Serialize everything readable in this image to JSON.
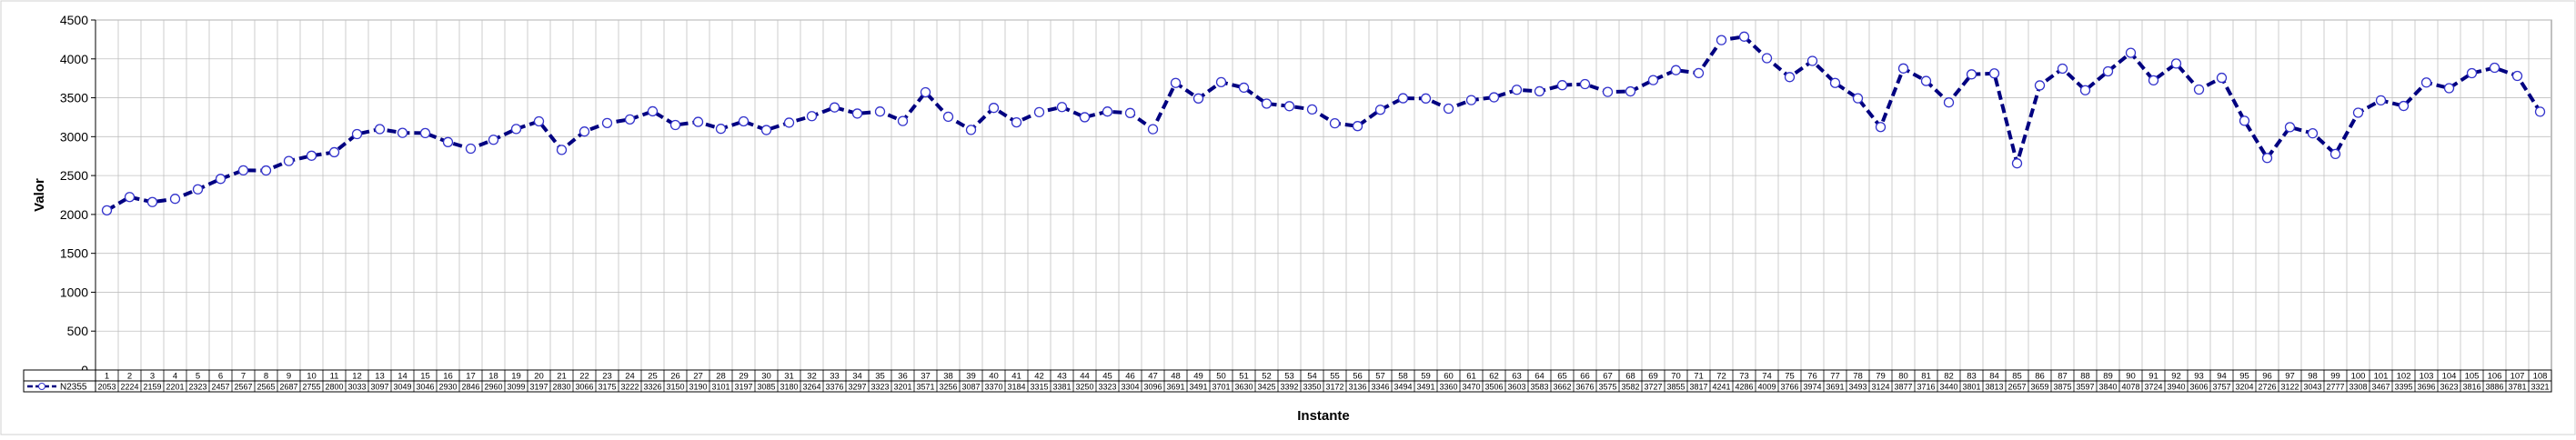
{
  "chart_data": {
    "type": "line",
    "title": "",
    "xlabel": "Instante",
    "ylabel": "Valor",
    "ylim": [
      0,
      4500
    ],
    "yticks": [
      0,
      500,
      1000,
      1500,
      2000,
      2500,
      3000,
      3500,
      4000,
      4500
    ],
    "grid": true,
    "legend_position": "table-below",
    "categories": [
      "1",
      "2",
      "3",
      "4",
      "5",
      "6",
      "7",
      "8",
      "9",
      "10",
      "11",
      "12",
      "13",
      "14",
      "15",
      "16",
      "17",
      "18",
      "19",
      "20",
      "21",
      "22",
      "23",
      "24",
      "25",
      "26",
      "27",
      "28",
      "29",
      "30",
      "31",
      "32",
      "33",
      "34",
      "35",
      "36",
      "37",
      "38",
      "39",
      "40",
      "41",
      "42",
      "43",
      "44",
      "45",
      "46",
      "47",
      "48",
      "49",
      "50",
      "51",
      "52",
      "53",
      "54",
      "55",
      "56",
      "57",
      "58",
      "59",
      "60",
      "61",
      "62",
      "63",
      "64",
      "65",
      "66",
      "67",
      "68",
      "69",
      "70",
      "71",
      "72",
      "73",
      "74",
      "75",
      "76",
      "77",
      "78",
      "79",
      "80",
      "81",
      "82",
      "83",
      "84",
      "85",
      "86",
      "87",
      "88",
      "89",
      "90",
      "91",
      "92",
      "93",
      "94",
      "95",
      "96",
      "97",
      "98",
      "99",
      "100",
      "101",
      "102",
      "103",
      "104",
      "105",
      "106",
      "107",
      "108"
    ],
    "series": [
      {
        "name": "N2355",
        "color": "#000080",
        "marker_color": "#3333cc",
        "values": [
          2053,
          2224,
          2159,
          2201,
          2323,
          2457,
          2567,
          2565,
          2687,
          2755,
          2800,
          3033,
          3097,
          3049,
          3046,
          2930,
          2846,
          2960,
          3099,
          3197,
          2830,
          3066,
          3175,
          3222,
          3326,
          3150,
          3190,
          3101,
          3197,
          3085,
          3180,
          3264,
          3376,
          3297,
          3323,
          3201,
          3571,
          3256,
          3087,
          3370,
          3184,
          3315,
          3381,
          3250,
          3323,
          3304,
          3096,
          3691,
          3491,
          3701,
          3630,
          3425,
          3392,
          3350,
          3172,
          3136,
          3346,
          3494,
          3491,
          3360,
          3470,
          3506,
          3603,
          3583,
          3662,
          3676,
          3575,
          3582,
          3727,
          3855,
          3817,
          4241,
          4286,
          4009,
          3766,
          3974,
          3691,
          3493,
          3124,
          3877,
          3716,
          3440,
          3801,
          3813,
          2657,
          3659,
          3875,
          3597,
          3840,
          4078,
          3724,
          3940,
          3606,
          3757,
          3204,
          2726,
          3122,
          3043,
          2777,
          3308,
          3467,
          3395,
          3696,
          3623,
          3816,
          3886,
          3781,
          3321
        ]
      }
    ]
  }
}
